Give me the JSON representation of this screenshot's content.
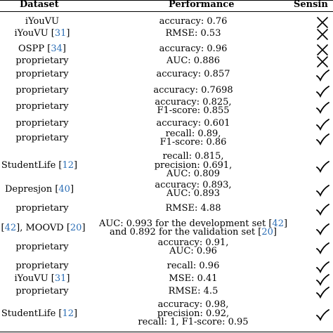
{
  "header": {
    "dataset": "Dataset",
    "performance": "Performance",
    "sensing": "Sensin"
  },
  "rows": [
    {
      "ds": "iYouVU",
      "ds_ref": "",
      "perf": [
        "accuracy: 0.76"
      ],
      "perf_ref": "",
      "mark": "cross"
    },
    {
      "ds": "iYouVU [",
      "ds_ref": "31",
      "ds_tail": "]",
      "perf": [
        "RMSE: 0.53"
      ],
      "mark": "cross"
    },
    {
      "ds": "OSPP [",
      "ds_ref": "34",
      "ds_tail": "]",
      "perf": [
        "accuracy: 0.96"
      ],
      "mark": "cross"
    },
    {
      "ds": "proprietary",
      "ds_ref": "",
      "perf": [
        "AUC: 0.886"
      ],
      "mark": "cross"
    },
    {
      "ds": "proprietary",
      "ds_ref": "",
      "perf": [
        "accuracy: 0.857"
      ],
      "mark": "check"
    },
    {
      "ds": "proprietary",
      "ds_ref": "",
      "perf": [
        "accuracy: 0.7698"
      ],
      "mark": "check"
    },
    {
      "ds": "proprietary",
      "ds_ref": "",
      "perf": [
        "accuracy: 0.825,",
        "F1-score: 0.855"
      ],
      "mark": "check"
    },
    {
      "ds": "proprietary",
      "ds_ref": "",
      "perf": [
        "accuracy: 0.601"
      ],
      "mark": "check"
    },
    {
      "ds": "proprietary",
      "ds_ref": "",
      "perf": [
        "recall: 0.89,",
        "F1-score: 0.86"
      ],
      "mark": "check"
    },
    {
      "ds": "StudentLife [",
      "ds_ref": "12",
      "ds_tail": "]",
      "perf": [
        "recall: 0.815,",
        "precision: 0.691,",
        "AUC: 0.809"
      ],
      "mark": "check"
    },
    {
      "ds": "Depresjon [",
      "ds_ref": "40",
      "ds_tail": "]",
      "perf": [
        "accuracy: 0.893,",
        "AUC: 0.893"
      ],
      "mark": "check"
    },
    {
      "ds": "proprietary",
      "ds_ref": "",
      "perf": [
        "RMSE: 4.88"
      ],
      "mark": "check"
    },
    {
      "ds": "A [",
      "ds_ref": "42",
      "ds_mid": "], MOOVD [",
      "ds_ref2": "20",
      "ds_tail": "]",
      "perf": [
        "AUC: 0.993 for the development set [42]",
        "and 0.892 for the validation set [20]"
      ],
      "mark": "check"
    },
    {
      "ds": "proprietary",
      "ds_ref": "",
      "perf": [
        "accuracy: 0.91,",
        "AUC: 0.96"
      ],
      "mark": "check"
    },
    {
      "ds": "proprietary",
      "ds_ref": "",
      "perf": [
        "recall: 0.96"
      ],
      "mark": "check"
    },
    {
      "ds": "iYouVU [",
      "ds_ref": "31",
      "ds_tail": "]",
      "perf": [
        "MSE: 0.41"
      ],
      "mark": "check"
    },
    {
      "ds": "proprietary",
      "ds_ref": "",
      "perf": [
        "RMSE: 4.5"
      ],
      "mark": "check"
    },
    {
      "ds": "StudentLife [",
      "ds_ref": "12",
      "ds_tail": "]",
      "perf": [
        "accuracy: 0.98,",
        "precision: 0.92,",
        "recall: 1, F1-score: 0.95"
      ],
      "mark": "check"
    }
  ]
}
